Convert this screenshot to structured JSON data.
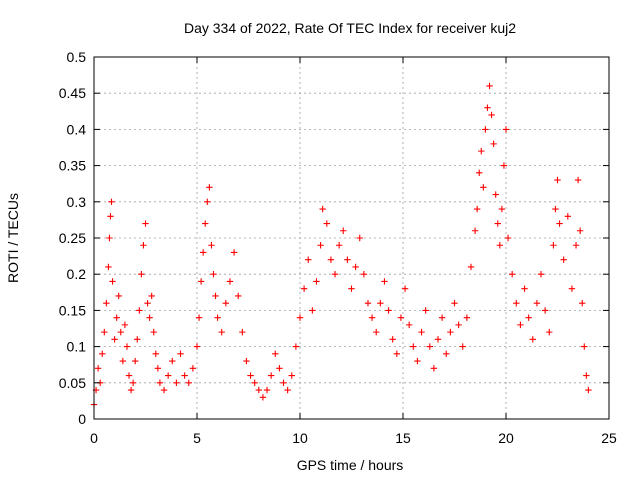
{
  "chart_data": {
    "type": "scatter",
    "title": "Day 334 of 2022, Rate Of TEC Index for receiver kuj2",
    "xlabel": "GPS time / hours",
    "ylabel": "ROTI / TECUs",
    "xlim": [
      0,
      25
    ],
    "ylim": [
      0,
      0.5
    ],
    "xticks": [
      0,
      5,
      10,
      15,
      20,
      25
    ],
    "yticks": [
      0,
      0.05,
      0.1,
      0.15,
      0.2,
      0.25,
      0.3,
      0.35,
      0.4,
      0.45,
      0.5
    ],
    "grid": true,
    "marker": "+",
    "color": "#ff0000",
    "series": [
      {
        "points": [
          [
            0.0,
            0.02
          ],
          [
            0.1,
            0.04
          ],
          [
            0.2,
            0.07
          ],
          [
            0.3,
            0.05
          ],
          [
            0.4,
            0.09
          ],
          [
            0.5,
            0.12
          ],
          [
            0.6,
            0.16
          ],
          [
            0.7,
            0.21
          ],
          [
            0.75,
            0.25
          ],
          [
            0.8,
            0.28
          ],
          [
            0.85,
            0.3
          ],
          [
            0.9,
            0.19
          ],
          [
            1.0,
            0.11
          ],
          [
            1.1,
            0.14
          ],
          [
            1.2,
            0.17
          ],
          [
            1.3,
            0.12
          ],
          [
            1.4,
            0.08
          ],
          [
            1.5,
            0.13
          ],
          [
            1.6,
            0.1
          ],
          [
            1.7,
            0.06
          ],
          [
            1.8,
            0.04
          ],
          [
            1.9,
            0.05
          ],
          [
            2.0,
            0.08
          ],
          [
            2.1,
            0.11
          ],
          [
            2.2,
            0.15
          ],
          [
            2.3,
            0.2
          ],
          [
            2.4,
            0.24
          ],
          [
            2.5,
            0.27
          ],
          [
            2.6,
            0.16
          ],
          [
            2.7,
            0.14
          ],
          [
            2.8,
            0.17
          ],
          [
            2.9,
            0.12
          ],
          [
            3.0,
            0.09
          ],
          [
            3.1,
            0.07
          ],
          [
            3.2,
            0.05
          ],
          [
            3.4,
            0.04
          ],
          [
            3.6,
            0.06
          ],
          [
            3.8,
            0.08
          ],
          [
            4.0,
            0.05
          ],
          [
            4.2,
            0.09
          ],
          [
            4.4,
            0.06
          ],
          [
            4.6,
            0.05
          ],
          [
            4.8,
            0.07
          ],
          [
            5.0,
            0.1
          ],
          [
            5.1,
            0.14
          ],
          [
            5.2,
            0.19
          ],
          [
            5.3,
            0.23
          ],
          [
            5.4,
            0.27
          ],
          [
            5.5,
            0.3
          ],
          [
            5.6,
            0.32
          ],
          [
            5.7,
            0.24
          ],
          [
            5.8,
            0.2
          ],
          [
            5.9,
            0.17
          ],
          [
            6.0,
            0.14
          ],
          [
            6.2,
            0.12
          ],
          [
            6.4,
            0.16
          ],
          [
            6.6,
            0.19
          ],
          [
            6.8,
            0.23
          ],
          [
            7.0,
            0.17
          ],
          [
            7.2,
            0.12
          ],
          [
            7.4,
            0.08
          ],
          [
            7.6,
            0.06
          ],
          [
            7.8,
            0.05
          ],
          [
            8.0,
            0.04
          ],
          [
            8.2,
            0.03
          ],
          [
            8.4,
            0.04
          ],
          [
            8.6,
            0.06
          ],
          [
            8.8,
            0.09
          ],
          [
            9.0,
            0.07
          ],
          [
            9.2,
            0.05
          ],
          [
            9.4,
            0.04
          ],
          [
            9.6,
            0.06
          ],
          [
            9.8,
            0.1
          ],
          [
            10.0,
            0.14
          ],
          [
            10.2,
            0.18
          ],
          [
            10.4,
            0.22
          ],
          [
            10.6,
            0.15
          ],
          [
            10.8,
            0.19
          ],
          [
            11.0,
            0.24
          ],
          [
            11.1,
            0.29
          ],
          [
            11.3,
            0.27
          ],
          [
            11.5,
            0.22
          ],
          [
            11.7,
            0.2
          ],
          [
            11.9,
            0.24
          ],
          [
            12.1,
            0.26
          ],
          [
            12.3,
            0.22
          ],
          [
            12.5,
            0.18
          ],
          [
            12.7,
            0.21
          ],
          [
            12.9,
            0.25
          ],
          [
            13.1,
            0.2
          ],
          [
            13.3,
            0.16
          ],
          [
            13.5,
            0.14
          ],
          [
            13.7,
            0.12
          ],
          [
            13.9,
            0.16
          ],
          [
            14.1,
            0.19
          ],
          [
            14.3,
            0.15
          ],
          [
            14.5,
            0.11
          ],
          [
            14.7,
            0.09
          ],
          [
            14.9,
            0.14
          ],
          [
            15.1,
            0.18
          ],
          [
            15.3,
            0.13
          ],
          [
            15.5,
            0.1
          ],
          [
            15.7,
            0.08
          ],
          [
            15.9,
            0.12
          ],
          [
            16.1,
            0.15
          ],
          [
            16.3,
            0.1
          ],
          [
            16.5,
            0.07
          ],
          [
            16.7,
            0.11
          ],
          [
            16.9,
            0.14
          ],
          [
            17.1,
            0.09
          ],
          [
            17.3,
            0.12
          ],
          [
            17.5,
            0.16
          ],
          [
            17.7,
            0.13
          ],
          [
            17.9,
            0.1
          ],
          [
            18.1,
            0.14
          ],
          [
            18.3,
            0.21
          ],
          [
            18.5,
            0.26
          ],
          [
            18.6,
            0.29
          ],
          [
            18.7,
            0.34
          ],
          [
            18.8,
            0.37
          ],
          [
            18.9,
            0.32
          ],
          [
            19.0,
            0.4
          ],
          [
            19.1,
            0.43
          ],
          [
            19.2,
            0.46
          ],
          [
            19.3,
            0.42
          ],
          [
            19.4,
            0.38
          ],
          [
            19.5,
            0.31
          ],
          [
            19.6,
            0.27
          ],
          [
            19.7,
            0.24
          ],
          [
            19.8,
            0.29
          ],
          [
            19.9,
            0.35
          ],
          [
            20.0,
            0.4
          ],
          [
            20.1,
            0.25
          ],
          [
            20.3,
            0.2
          ],
          [
            20.5,
            0.16
          ],
          [
            20.7,
            0.13
          ],
          [
            20.9,
            0.18
          ],
          [
            21.1,
            0.14
          ],
          [
            21.3,
            0.11
          ],
          [
            21.5,
            0.16
          ],
          [
            21.7,
            0.2
          ],
          [
            21.9,
            0.15
          ],
          [
            22.1,
            0.12
          ],
          [
            22.3,
            0.24
          ],
          [
            22.4,
            0.29
          ],
          [
            22.5,
            0.33
          ],
          [
            22.6,
            0.27
          ],
          [
            22.8,
            0.22
          ],
          [
            23.0,
            0.28
          ],
          [
            23.2,
            0.18
          ],
          [
            23.4,
            0.24
          ],
          [
            23.5,
            0.33
          ],
          [
            23.6,
            0.26
          ],
          [
            23.7,
            0.16
          ],
          [
            23.8,
            0.1
          ],
          [
            23.9,
            0.06
          ],
          [
            24.0,
            0.04
          ]
        ]
      }
    ]
  }
}
